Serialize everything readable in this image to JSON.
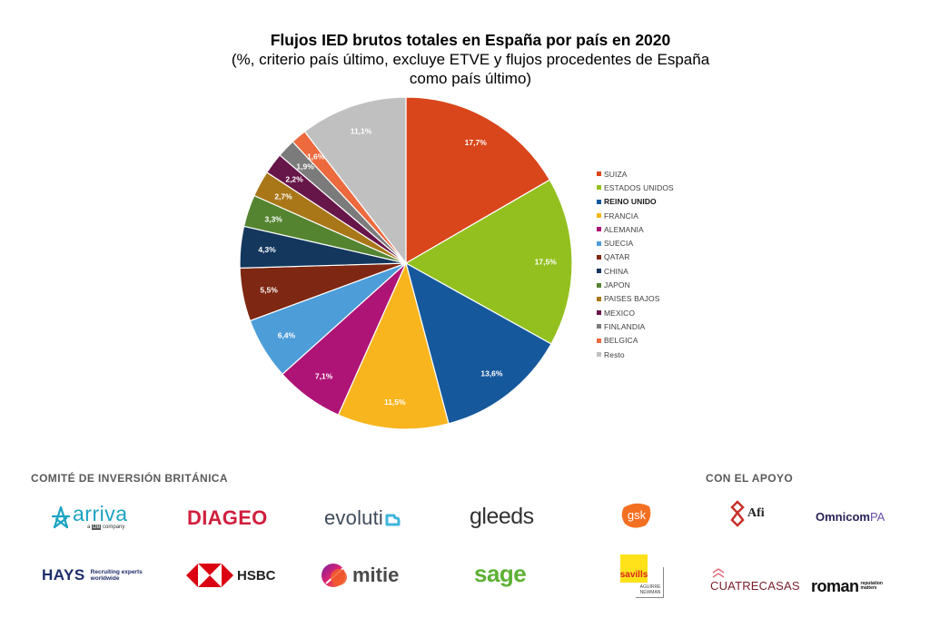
{
  "chart_data": {
    "type": "pie",
    "title": "Flujos IED brutos totales en España por país en 2020",
    "subtitle_lines": [
      "(%, criterio país último, excluye ETVE y flujos procedentes de España",
      "como país último)"
    ],
    "legend_position": "right",
    "start_angle_deg": 0,
    "direction": "clockwise",
    "slices": [
      {
        "name": "SUIZA",
        "value": 17.7,
        "label": "17,7%",
        "color": "#D9461B",
        "bold": false
      },
      {
        "name": "ESTADOS UNIDOS",
        "value": 17.5,
        "label": "17,5%",
        "color": "#93C01F",
        "bold": false
      },
      {
        "name": "REINO UNIDO",
        "value": 13.6,
        "label": "13,6%",
        "color": "#16589C",
        "bold": true
      },
      {
        "name": "FRANCIA",
        "value": 11.5,
        "label": "11,5%",
        "color": "#F8B51E",
        "bold": false
      },
      {
        "name": "ALEMANIA",
        "value": 7.1,
        "label": "7,1%",
        "color": "#AE1476",
        "bold": false
      },
      {
        "name": "SUECIA",
        "value": 6.4,
        "label": "6,4%",
        "color": "#4C9DD8",
        "bold": false
      },
      {
        "name": "QATAR",
        "value": 5.5,
        "label": "5,5%",
        "color": "#7E2712",
        "bold": false
      },
      {
        "name": "CHINA",
        "value": 4.3,
        "label": "4,3%",
        "color": "#14375E",
        "bold": false
      },
      {
        "name": "JAPON",
        "value": 3.3,
        "label": "3,3%",
        "color": "#548430",
        "bold": false
      },
      {
        "name": "PAISES BAJOS",
        "value": 2.7,
        "label": "2,7%",
        "color": "#A97718",
        "bold": false
      },
      {
        "name": "MEXICO",
        "value": 2.2,
        "label": "2,2%",
        "color": "#67164A",
        "bold": false
      },
      {
        "name": "FINLANDIA",
        "value": 1.9,
        "label": "1,9%",
        "color": "#7B7B7B",
        "bold": false
      },
      {
        "name": "BELGICA",
        "value": 1.6,
        "label": "1,6%",
        "color": "#EC6A3E",
        "bold": false
      },
      {
        "name": "Resto",
        "value": 11.1,
        "label": "11,1%",
        "color": "#C0C0C0",
        "bold": false
      }
    ]
  },
  "sponsors": {
    "committee_heading": "COMITÉ DE INVERSIÓN BRITÁNICA",
    "support_heading": "CON EL APOYO",
    "arriva": {
      "name": "arriva",
      "tagline_a": "a",
      "tagline_db": "DB",
      "tagline_rest": "company",
      "color": "#1BA3C1"
    },
    "diageo": {
      "name": "DIAGEO",
      "color": "#D11F3D"
    },
    "evolutio": {
      "name": "evoluti",
      "color": "#3F4B5B",
      "accent": "#3FB6DC"
    },
    "gleeds": {
      "name": "gleeds",
      "color": "#333333"
    },
    "hays": {
      "name": "HAYS",
      "tagline_1": "Recruiting experts",
      "tagline_2": "worldwide",
      "color": "#1D2C6B"
    },
    "hsbc": {
      "name": "HSBC",
      "color": "#DB0011"
    },
    "mitie": {
      "name": "mitie",
      "color": "#4A4A4A"
    },
    "sage": {
      "name": "sage",
      "color": "#5DB135"
    },
    "gsk": {
      "name": "gsk",
      "color": "#F36F21"
    },
    "afi": {
      "name": "Afi",
      "color": "#C8302B"
    },
    "omnicom": {
      "name_main": "Omnicom",
      "name_suffix": "PA",
      "color": "#2A2358",
      "suffix_color": "#6B4FA8"
    },
    "savills": {
      "name": "savills",
      "sub_1": "AGUIRRE",
      "sub_2": "NEWMAN",
      "color": "#FFE21A",
      "text_color": "#D9261C"
    },
    "cuatrecasas": {
      "name": "CUATRECASAS",
      "color": "#7A1E2C",
      "icon_color": "#E06F7A"
    },
    "roman": {
      "name": "roman",
      "tagline_1": "reputation",
      "tagline_2": "matters",
      "color": "#111111"
    }
  }
}
